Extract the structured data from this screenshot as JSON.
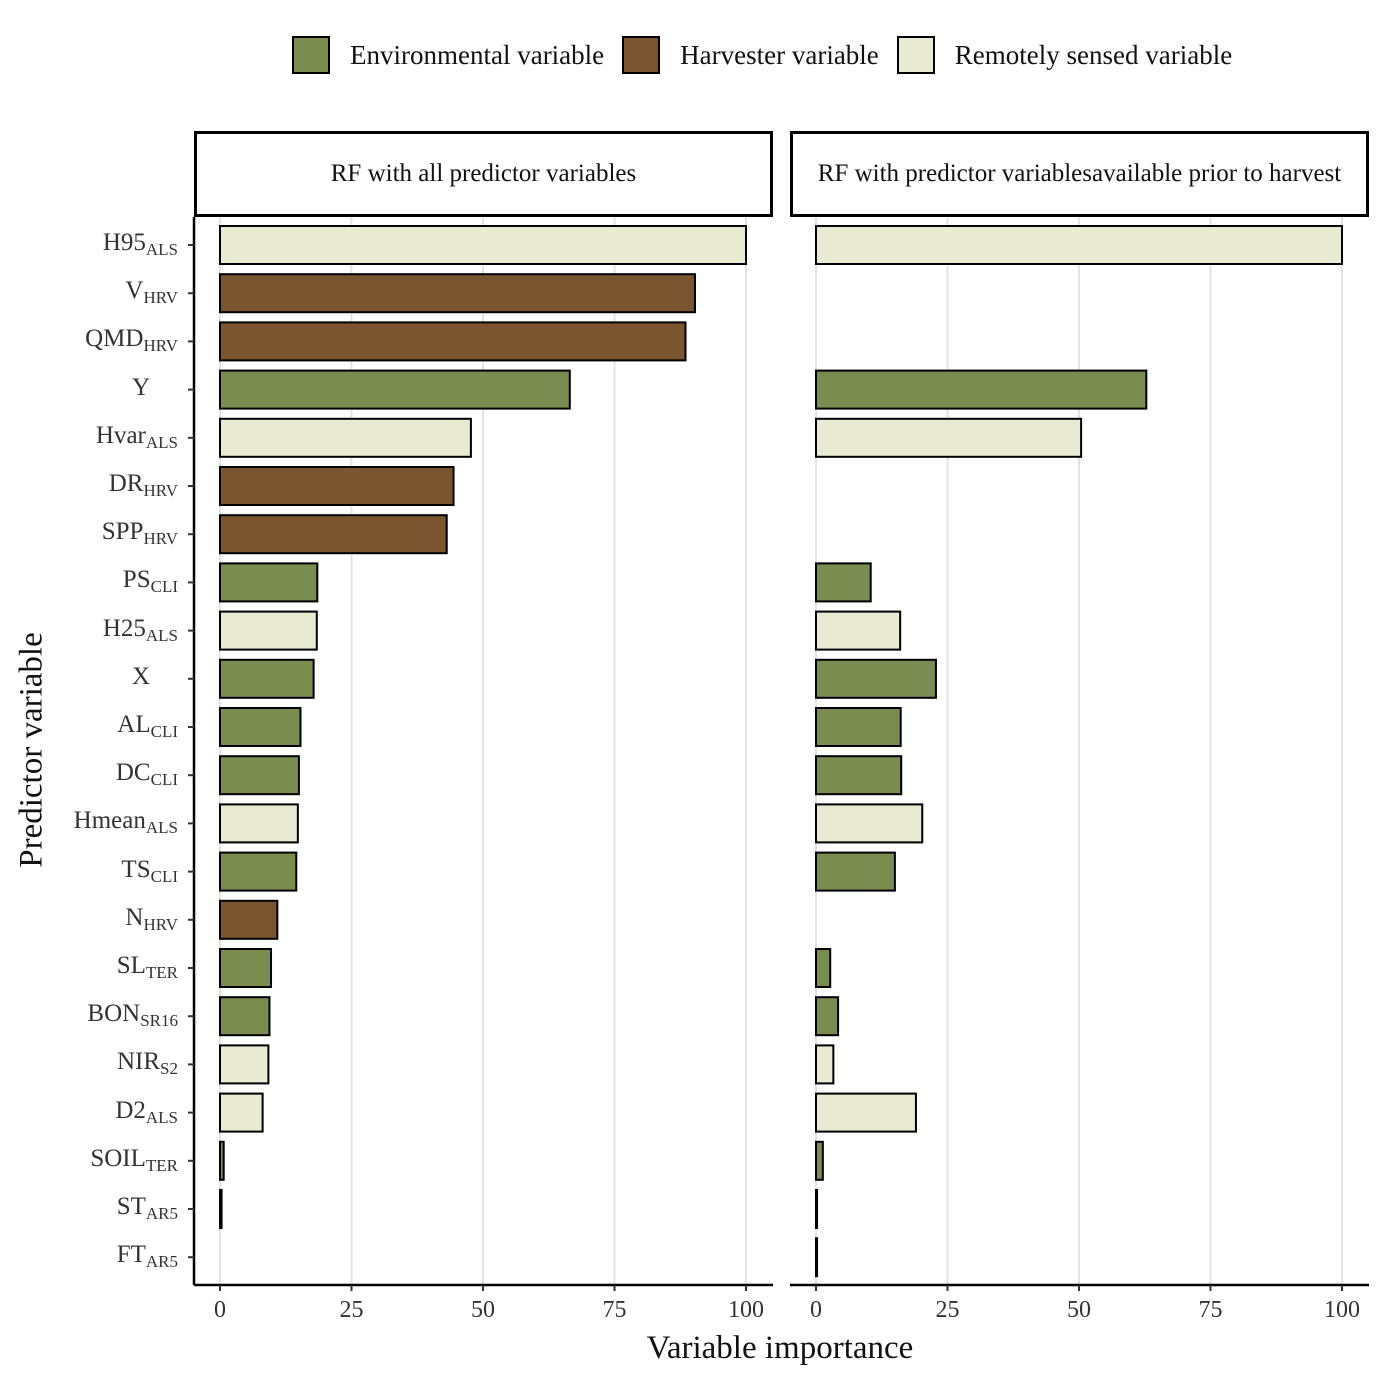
{
  "colors": {
    "environmental": "#7a8c4f",
    "harvester": "#7a552f",
    "remote": "#e8ead2",
    "gridline": "#e3e3e3"
  },
  "legend": [
    {
      "label": "Environmental variable",
      "type": "environmental"
    },
    {
      "label": "Harvester variable",
      "type": "harvester"
    },
    {
      "label": "Remotely sensed variable",
      "type": "remote"
    }
  ],
  "chart_data": {
    "type": "bar",
    "orientation": "horizontal",
    "xlabel": "Variable importance",
    "ylabel": "Predictor variable",
    "xlim": [
      0,
      100
    ],
    "xticks": [
      0,
      25,
      50,
      75,
      100
    ],
    "legend_position": "top",
    "variables": [
      {
        "base": "H95",
        "sub": "ALS",
        "type": "remote"
      },
      {
        "base": "V",
        "sub": "HRV",
        "type": "harvester"
      },
      {
        "base": "QMD",
        "sub": "HRV",
        "type": "harvester"
      },
      {
        "base": "Y",
        "sub": "",
        "type": "environmental"
      },
      {
        "base": "Hvar",
        "sub": "ALS",
        "type": "remote"
      },
      {
        "base": "DR",
        "sub": "HRV",
        "type": "harvester"
      },
      {
        "base": "SPP",
        "sub": "HRV",
        "type": "harvester"
      },
      {
        "base": "PS",
        "sub": "CLI",
        "type": "environmental"
      },
      {
        "base": "H25",
        "sub": "ALS",
        "type": "remote"
      },
      {
        "base": "X",
        "sub": "",
        "type": "environmental"
      },
      {
        "base": "AL",
        "sub": "CLI",
        "type": "environmental"
      },
      {
        "base": "DC",
        "sub": "CLI",
        "type": "environmental"
      },
      {
        "base": "Hmean",
        "sub": "ALS",
        "type": "remote"
      },
      {
        "base": "TS",
        "sub": "CLI",
        "type": "environmental"
      },
      {
        "base": "N",
        "sub": "HRV",
        "type": "harvester"
      },
      {
        "base": "SL",
        "sub": "TER",
        "type": "environmental"
      },
      {
        "base": "BON",
        "sub": "SR16",
        "type": "environmental"
      },
      {
        "base": "NIR",
        "sub": "S2",
        "type": "remote"
      },
      {
        "base": "D2",
        "sub": "ALS",
        "type": "remote"
      },
      {
        "base": "SOIL",
        "sub": "TER",
        "type": "environmental"
      },
      {
        "base": "ST",
        "sub": "AR5",
        "type": "environmental"
      },
      {
        "base": "FT",
        "sub": "AR5",
        "type": "environmental"
      }
    ],
    "panels": [
      {
        "title_lines": [
          "RF with all predictor variables"
        ],
        "values": [
          100,
          90.3,
          88.5,
          66.5,
          47.7,
          44.4,
          43.1,
          18.5,
          18.4,
          17.8,
          15.3,
          15.0,
          14.8,
          14.5,
          10.9,
          9.7,
          9.4,
          9.2,
          8.1,
          0.7,
          0.3,
          0
        ]
      },
      {
        "title_lines": [
          "RF with predictor variables",
          "available prior to harvest"
        ],
        "values": [
          100,
          null,
          null,
          62.8,
          50.4,
          null,
          null,
          10.4,
          16.0,
          22.8,
          16.1,
          16.2,
          20.2,
          15.0,
          null,
          2.7,
          4.2,
          3.3,
          19.0,
          1.3,
          0.2,
          0.2
        ]
      }
    ]
  }
}
